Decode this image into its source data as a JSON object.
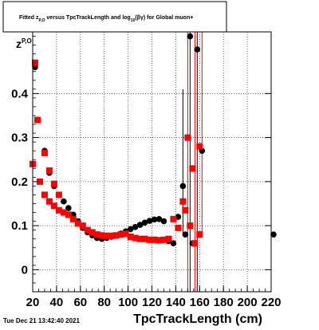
{
  "chart_data": {
    "type": "scatter",
    "title": {
      "prefix": "Fitted  z",
      "sub1": "P,O",
      "middle": " versus TpcTrackLength and log",
      "sub2": "10",
      "suffix": "(βγ) for Global muon+"
    },
    "ylabel_main": "z",
    "ylabel_sub": "P,O",
    "xlabel": "TpcTrackLength (cm)",
    "timestamp": "Tue Dec 21 13:42:40 2021",
    "xlim": [
      20,
      220
    ],
    "ylim": [
      -0.05,
      0.54
    ],
    "xticks": [
      20,
      40,
      60,
      80,
      100,
      120,
      140,
      160,
      180,
      200,
      220
    ],
    "yticks": [
      0,
      0.1,
      0.2,
      0.3,
      0.4
    ],
    "ytick_labels": [
      "0",
      "0.1",
      "0.2",
      "0.3",
      "0.4"
    ],
    "grid": true,
    "colors": {
      "series_black": "#000000",
      "series_red": "#ff0000",
      "frame": "#000000"
    },
    "series": [
      {
        "marker": "circle",
        "color": "#000000",
        "points": [
          [
            22,
            0.46
          ],
          [
            24,
            0.34
          ],
          [
            30,
            0.27
          ],
          [
            34,
            0.22
          ],
          [
            38,
            0.19
          ],
          [
            42,
            0.17
          ],
          [
            46,
            0.155
          ],
          [
            50,
            0.14
          ],
          [
            54,
            0.125
          ],
          [
            58,
            0.11
          ],
          [
            62,
            0.095
          ],
          [
            66,
            0.085
          ],
          [
            70,
            0.078
          ],
          [
            74,
            0.072
          ],
          [
            78,
            0.07
          ],
          [
            82,
            0.072
          ],
          [
            86,
            0.075
          ],
          [
            90,
            0.078
          ],
          [
            94,
            0.082
          ],
          [
            98,
            0.087
          ],
          [
            102,
            0.092
          ],
          [
            106,
            0.097
          ],
          [
            110,
            0.102
          ],
          [
            114,
            0.107
          ],
          [
            118,
            0.111
          ],
          [
            122,
            0.114
          ],
          [
            126,
            0.115
          ],
          [
            130,
            0.11
          ],
          [
            134,
            0.065
          ],
          [
            138,
            0.06
          ],
          [
            142,
            0.12
          ],
          [
            146,
            0.19
          ],
          [
            148,
            0.08
          ],
          [
            152,
            0.53
          ],
          [
            154,
            0.06
          ],
          [
            158,
            0.5
          ],
          [
            162,
            0.27
          ],
          [
            222,
            0.08
          ]
        ],
        "errorbars": [
          {
            "x": 146,
            "lo": 0.08,
            "hi": 0.41
          },
          {
            "x": 152,
            "lo": -0.05,
            "hi": 0.54
          },
          {
            "x": 158,
            "lo": -0.05,
            "hi": 0.54
          }
        ]
      },
      {
        "marker": "square",
        "color": "#ff0000",
        "points": [
          [
            22,
            0.47
          ],
          [
            24,
            0.34
          ],
          [
            30,
            0.265
          ],
          [
            34,
            0.225
          ],
          [
            38,
            0.195
          ],
          [
            42,
            0.17
          ],
          [
            20,
            0.24
          ],
          [
            26,
            0.2
          ],
          [
            30,
            0.17
          ],
          [
            34,
            0.155
          ],
          [
            38,
            0.145
          ],
          [
            42,
            0.135
          ],
          [
            46,
            0.13
          ],
          [
            50,
            0.125
          ],
          [
            54,
            0.115
          ],
          [
            58,
            0.105
          ],
          [
            62,
            0.1
          ],
          [
            66,
            0.09
          ],
          [
            70,
            0.085
          ],
          [
            74,
            0.08
          ],
          [
            78,
            0.078
          ],
          [
            82,
            0.077
          ],
          [
            86,
            0.077
          ],
          [
            90,
            0.078
          ],
          [
            94,
            0.08
          ],
          [
            98,
            0.082
          ],
          [
            102,
            0.075
          ],
          [
            106,
            0.072
          ],
          [
            110,
            0.07
          ],
          [
            114,
            0.07
          ],
          [
            118,
            0.068
          ],
          [
            122,
            0.068
          ],
          [
            126,
            0.067
          ],
          [
            130,
            0.068
          ],
          [
            134,
            0.07
          ],
          [
            138,
            0.115
          ],
          [
            142,
            0.095
          ],
          [
            146,
            0.155
          ],
          [
            148,
            0.135
          ],
          [
            150,
            0.3
          ],
          [
            152,
            0.1
          ],
          [
            154,
            0.23
          ],
          [
            156,
            0.06
          ],
          [
            160,
            0.28
          ],
          [
            160,
            0.08
          ]
        ],
        "errorbars": [
          {
            "x": 150,
            "lo": -0.05,
            "hi": 0.54
          },
          {
            "x": 156,
            "lo": -0.05,
            "hi": 0.54
          },
          {
            "x": 162,
            "lo": 0.08,
            "hi": 0.54
          }
        ]
      }
    ]
  }
}
